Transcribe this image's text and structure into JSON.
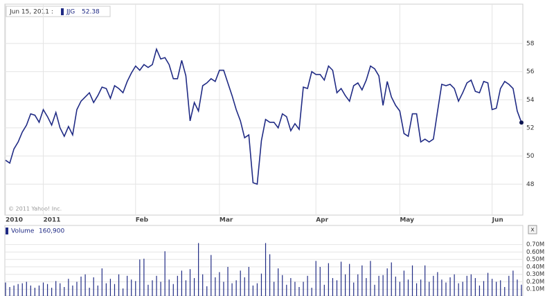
{
  "header": {
    "date": "Jun 15, 2011 :"
  },
  "copyright": "© 2011 Yahoo! Inc.",
  "close_button": "x",
  "chart_data": [
    {
      "type": "line",
      "categories": [
        "2010",
        null,
        null,
        null,
        null,
        null,
        null,
        null,
        null,
        "2011",
        null,
        null,
        null,
        null,
        null,
        null,
        null,
        null,
        null,
        null,
        null,
        null,
        null,
        null,
        null,
        null,
        null,
        null,
        null,
        null,
        null,
        "Feb",
        null,
        null,
        null,
        null,
        null,
        null,
        null,
        null,
        null,
        null,
        null,
        null,
        null,
        null,
        null,
        null,
        null,
        null,
        null,
        "Mar",
        null,
        null,
        null,
        null,
        null,
        null,
        null,
        null,
        null,
        null,
        null,
        null,
        null,
        null,
        null,
        null,
        null,
        null,
        null,
        null,
        null,
        null,
        "Apr",
        null,
        null,
        null,
        null,
        null,
        null,
        null,
        null,
        null,
        null,
        null,
        null,
        null,
        null,
        null,
        null,
        null,
        null,
        null,
        "May",
        null,
        null,
        null,
        null,
        null,
        null,
        null,
        null,
        null,
        null,
        null,
        null,
        null,
        null,
        null,
        null,
        null,
        null,
        null,
        null,
        null,
        "Jun",
        null,
        null,
        null,
        null,
        null,
        null,
        null
      ],
      "series": [
        {
          "name": "JJG",
          "color": "#1f2a84",
          "values": [
            49.7,
            49.5,
            50.5,
            51,
            51.7,
            52.2,
            53,
            52.9,
            52.4,
            53.3,
            52.8,
            52.2,
            53.1,
            52,
            51.4,
            52.1,
            51.5,
            53.3,
            53.9,
            54.2,
            54.5,
            53.8,
            54.3,
            54.9,
            54.8,
            54.1,
            55,
            54.8,
            54.5,
            55.3,
            55.9,
            56.4,
            56.1,
            56.5,
            56.3,
            56.5,
            57.6,
            56.9,
            57,
            56.5,
            55.5,
            55.5,
            56.8,
            55.7,
            52.5,
            53.8,
            53.2,
            55,
            55.2,
            55.5,
            55.3,
            56.1,
            56.1,
            55.2,
            54.3,
            53.3,
            52.5,
            51.3,
            51.5,
            48.1,
            48,
            51.1,
            52.6,
            52.4,
            52.4,
            52,
            53,
            52.8,
            51.8,
            52.3,
            51.9,
            54.9,
            54.8,
            56,
            55.8,
            55.8,
            55.4,
            56.4,
            56.1,
            54.5,
            54.8,
            54.3,
            53.9,
            55,
            55.2,
            54.7,
            55.4,
            56.4,
            56.2,
            55.7,
            53.6,
            55.3,
            54.2,
            53.6,
            53.2,
            51.6,
            51.4,
            53,
            53,
            51,
            51.2,
            51,
            51.2,
            53.2,
            55.1,
            55,
            55.1,
            54.8,
            53.9,
            54.5,
            55.2,
            55.4,
            54.6,
            54.5,
            55.3,
            55.2,
            53.3,
            53.4,
            54.8,
            55.3,
            55.1,
            54.8,
            53.2,
            52.38
          ]
        }
      ],
      "ylim": [
        45.8,
        60.8
      ],
      "yticks": [
        48,
        50,
        52,
        54,
        56,
        58
      ],
      "grid": true
    },
    {
      "type": "bar",
      "series": [
        {
          "name": "Volume",
          "color": "#1f2a84",
          "legend_value": {
            "value": 160900,
            "label": "160,900"
          },
          "values": [
            190000,
            130000,
            150000,
            170000,
            180000,
            200000,
            150000,
            120000,
            150000,
            190000,
            170000,
            120000,
            210000,
            180000,
            130000,
            240000,
            150000,
            200000,
            270000,
            300000,
            120000,
            260000,
            150000,
            380000,
            180000,
            240000,
            170000,
            300000,
            110000,
            280000,
            230000,
            210000,
            500000,
            510000,
            160000,
            220000,
            280000,
            200000,
            610000,
            230000,
            170000,
            280000,
            350000,
            220000,
            370000,
            250000,
            720000,
            300000,
            140000,
            560000,
            260000,
            330000,
            200000,
            400000,
            180000,
            220000,
            350000,
            260000,
            400000,
            150000,
            180000,
            310000,
            720000,
            570000,
            200000,
            380000,
            290000,
            160000,
            250000,
            200000,
            130000,
            200000,
            280000,
            120000,
            480000,
            400000,
            160000,
            450000,
            250000,
            220000,
            470000,
            300000,
            440000,
            190000,
            300000,
            420000,
            250000,
            480000,
            160000,
            280000,
            290000,
            380000,
            460000,
            270000,
            200000,
            350000,
            230000,
            420000,
            180000,
            230000,
            420000,
            200000,
            280000,
            330000,
            230000,
            190000,
            260000,
            300000,
            180000,
            200000,
            280000,
            300000,
            250000,
            150000,
            210000,
            320000,
            240000,
            200000,
            220000,
            130000,
            280000,
            350000,
            230000,
            160900
          ]
        }
      ],
      "ylim": [
        0,
        780000
      ],
      "yticks": [
        {
          "value": 100000,
          "label": "0.10M"
        },
        {
          "value": 200000,
          "label": "0.20M"
        },
        {
          "value": 300000,
          "label": "0.30M"
        },
        {
          "value": 400000,
          "label": "0.40M"
        },
        {
          "value": 500000,
          "label": "0.50M"
        },
        {
          "value": 600000,
          "label": "0.60M"
        },
        {
          "value": 700000,
          "label": "0.70M"
        }
      ],
      "grid": true
    }
  ]
}
